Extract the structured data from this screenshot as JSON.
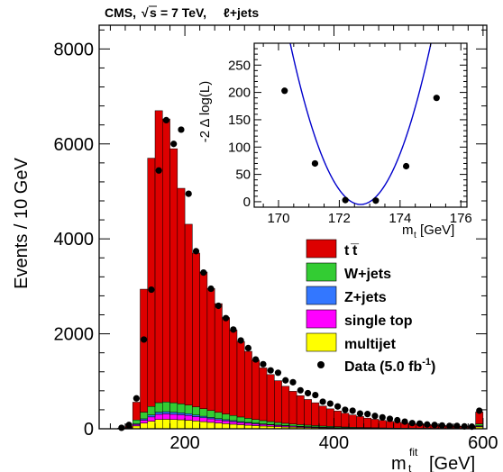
{
  "chart_data": [
    {
      "type": "bar",
      "stacked": true,
      "title": "CMS,  √s = 7 TeV, ℓ+jets",
      "title_parts": {
        "exp": "CMS,",
        "sqrt_s": "s",
        "energy": "= 7 TeV,",
        "channel": "ℓ+jets"
      },
      "xlabel": "m",
      "xlabel_sub": "t",
      "xlabel_sup": "fit",
      "xlabel_unit": "[GeV]",
      "ylabel": "Events / 10 GeV",
      "xlim": [
        85,
        605
      ],
      "ylim": [
        0,
        8500
      ],
      "xticks": [
        200,
        400,
        600
      ],
      "yticks": [
        0,
        2000,
        4000,
        6000,
        8000
      ],
      "bin_edges": [
        110,
        120,
        130,
        140,
        150,
        160,
        170,
        180,
        190,
        200,
        210,
        220,
        230,
        240,
        250,
        260,
        270,
        280,
        290,
        300,
        310,
        320,
        330,
        340,
        350,
        360,
        370,
        380,
        390,
        400,
        410,
        420,
        430,
        440,
        450,
        460,
        470,
        480,
        490,
        500,
        510,
        520,
        530,
        540,
        550,
        560,
        570,
        580,
        590,
        600
      ],
      "series": [
        {
          "name": "multijet",
          "color": "#ffff00",
          "values": [
            5,
            10,
            60,
            120,
            160,
            195,
            200,
            195,
            190,
            180,
            165,
            150,
            135,
            120,
            108,
            96,
            85,
            75,
            66,
            58,
            51,
            44,
            38,
            33,
            29,
            25,
            22,
            19,
            16,
            14,
            12,
            10,
            9,
            8,
            7,
            6,
            5,
            4,
            4,
            3,
            3,
            3,
            2,
            2,
            2,
            2,
            2,
            2,
            40
          ]
        },
        {
          "name": "single top",
          "color": "#ff00ff",
          "values": [
            2,
            5,
            30,
            60,
            90,
            110,
            115,
            110,
            105,
            100,
            90,
            82,
            75,
            68,
            60,
            55,
            48,
            43,
            38,
            33,
            29,
            26,
            22,
            19,
            17,
            15,
            13,
            11,
            10,
            8,
            7,
            6,
            5,
            5,
            4,
            4,
            3,
            3,
            2,
            2,
            2,
            2,
            2,
            2,
            1,
            1,
            1,
            1,
            15
          ]
        },
        {
          "name": "Z+jets",
          "color": "#3377ff",
          "values": [
            1,
            3,
            15,
            30,
            40,
            45,
            45,
            43,
            40,
            38,
            35,
            32,
            29,
            26,
            23,
            21,
            18,
            16,
            14,
            12,
            11,
            9,
            8,
            7,
            6,
            5,
            5,
            4,
            3,
            3,
            3,
            2,
            2,
            2,
            2,
            1,
            1,
            1,
            1,
            1,
            1,
            1,
            1,
            1,
            1,
            1,
            1,
            1,
            8
          ]
        },
        {
          "name": "W+jets",
          "color": "#33cc33",
          "values": [
            3,
            10,
            80,
            140,
            180,
            200,
            205,
            200,
            190,
            180,
            170,
            158,
            145,
            132,
            120,
            108,
            97,
            87,
            77,
            69,
            61,
            54,
            47,
            41,
            36,
            32,
            28,
            24,
            21,
            18,
            16,
            14,
            12,
            10,
            9,
            8,
            7,
            6,
            5,
            5,
            4,
            4,
            3,
            3,
            3,
            2,
            2,
            2,
            40
          ]
        },
        {
          "name": "t̅t",
          "color": "#dd0000",
          "values": [
            4,
            27,
            375,
            2590,
            5230,
            6150,
            5960,
            5350,
            4540,
            3810,
            3240,
            2880,
            2570,
            2290,
            2030,
            1800,
            1590,
            1410,
            1250,
            1110,
            990,
            880,
            780,
            690,
            610,
            540,
            480,
            420,
            370,
            330,
            290,
            260,
            230,
            200,
            178,
            158,
            140,
            124,
            110,
            97,
            87,
            78,
            70,
            62,
            55,
            49,
            44,
            40,
            250
          ]
        }
      ],
      "data": {
        "name": "Data (5.0 fb⁻¹)",
        "label_main": "Data (5.0 fb",
        "label_sup": "-1",
        "label_end": ")",
        "x": [
          115,
          125,
          135,
          145,
          155,
          165,
          175,
          185,
          195,
          205,
          215,
          225,
          235,
          245,
          255,
          265,
          275,
          285,
          295,
          305,
          315,
          325,
          335,
          345,
          355,
          365,
          375,
          385,
          395,
          405,
          415,
          425,
          435,
          445,
          455,
          465,
          475,
          485,
          495,
          505,
          515,
          525,
          535,
          545,
          555,
          565,
          575,
          585,
          595
        ],
        "y": [
          20,
          80,
          640,
          1880,
          2930,
          5440,
          6500,
          6000,
          6300,
          4950,
          3740,
          3290,
          2950,
          2590,
          2330,
          2090,
          1860,
          1700,
          1460,
          1360,
          1230,
          1180,
          1020,
          980,
          810,
          750,
          710,
          570,
          530,
          470,
          400,
          380,
          320,
          310,
          270,
          240,
          210,
          180,
          150,
          120,
          110,
          90,
          80,
          70,
          60,
          60,
          50,
          45,
          380
        ]
      },
      "legend_labels": {
        "tt": "t",
        "tt_bar": "t̅",
        "wjets": "W+jets",
        "zjets": "Z+jets",
        "stop": "single top",
        "multijet": "multijet"
      },
      "legend_position": "right"
    },
    {
      "type": "scatter",
      "title": "",
      "xlabel": "m",
      "xlabel_sub": "t",
      "xlabel_unit": "[GeV]",
      "ylabel": "-2 Δ log(L)",
      "xlim": [
        169.2,
        176.2
      ],
      "ylim": [
        -10,
        290
      ],
      "xticks": [
        170,
        172,
        174,
        176
      ],
      "yticks": [
        0,
        50,
        100,
        150,
        200,
        250
      ],
      "points_x": [
        170.2,
        171.2,
        172.2,
        173.2,
        174.2,
        175.2
      ],
      "points_y": [
        203,
        70,
        3,
        2,
        65,
        190
      ],
      "fit": {
        "type": "parabola",
        "min_x": 172.7,
        "min_y": -5,
        "curvature": 55,
        "color": "#0000cc"
      }
    }
  ]
}
